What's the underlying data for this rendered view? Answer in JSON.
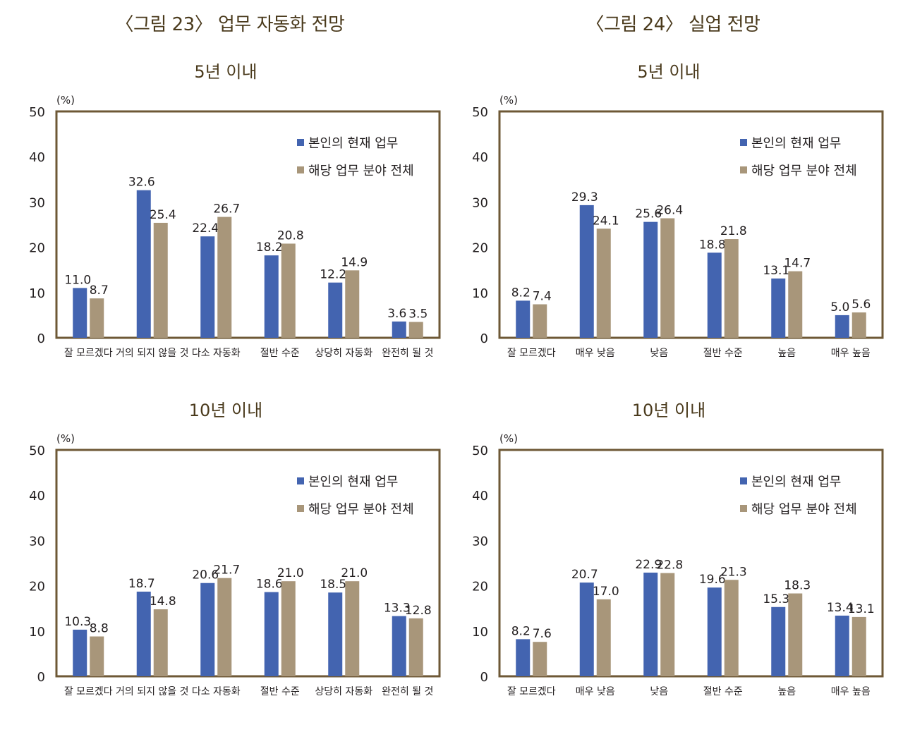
{
  "figures": [
    {
      "title": "〈그림 23〉 업무 자동화 전망"
    },
    {
      "title": "〈그림 24〉 실업 전망"
    }
  ],
  "colors": {
    "series1": "#4364b0",
    "series2": "#a8967a",
    "frame": "#6e5836",
    "title": "#4a3a1c"
  },
  "chart_data": [
    {
      "type": "bar",
      "title": "5년 이내",
      "ylabel": "(%)",
      "ylim": [
        0,
        50
      ],
      "yticks": [
        0,
        10,
        20,
        30,
        40,
        50
      ],
      "legend": "top-right",
      "categories": [
        "잘 모르겠다",
        "거의 되지 않을 것",
        "다소 자동화",
        "절반 수준",
        "상당히 자동화",
        "완전히 될 것"
      ],
      "series": [
        {
          "name": "본인의 현재 업무",
          "values": [
            11.0,
            32.6,
            22.4,
            18.2,
            12.2,
            3.6
          ],
          "labels": [
            "11.0",
            "32.6",
            "22.4",
            "18.2",
            "12.2",
            "3.6"
          ]
        },
        {
          "name": "해당 업무 분야 전체",
          "values": [
            8.7,
            25.4,
            26.7,
            20.8,
            14.9,
            3.5
          ],
          "labels": [
            "8.7",
            "25.4",
            "26.7",
            "20.8",
            "14.9",
            "3.5"
          ]
        }
      ]
    },
    {
      "type": "bar",
      "title": "5년 이내",
      "ylabel": "(%)",
      "ylim": [
        0,
        50
      ],
      "yticks": [
        0,
        10,
        20,
        30,
        40,
        50
      ],
      "legend": "top-right",
      "categories": [
        "잘 모르겠다",
        "매우 낮음",
        "낮음",
        "절반 수준",
        "높음",
        "매우 높음"
      ],
      "series": [
        {
          "name": "본인의 현재 업무",
          "values": [
            8.2,
            29.3,
            25.6,
            18.8,
            13.1,
            5.0
          ],
          "labels": [
            "8.2",
            "29.3",
            "25.6",
            "18.8",
            "13.1",
            "5.0"
          ]
        },
        {
          "name": "해당 업무 분야 전체",
          "values": [
            7.4,
            24.1,
            26.4,
            21.8,
            14.7,
            5.6
          ],
          "labels": [
            "7.4",
            "24.1",
            "26.4",
            "21.8",
            "14.7",
            "5.6"
          ]
        }
      ]
    },
    {
      "type": "bar",
      "title": "10년 이내",
      "ylabel": "(%)",
      "ylim": [
        0,
        50
      ],
      "yticks": [
        0,
        10,
        20,
        30,
        40,
        50
      ],
      "legend": "top-right",
      "categories": [
        "잘 모르겠다",
        "거의 되지 않을 것",
        "다소 자동화",
        "절반 수준",
        "상당히 자동화",
        "완전히 될 것"
      ],
      "series": [
        {
          "name": "본인의 현재 업무",
          "values": [
            10.3,
            18.7,
            20.6,
            18.6,
            18.5,
            13.3
          ],
          "labels": [
            "10.3",
            "18.7",
            "20.6",
            "18.6",
            "18.5",
            "13.3"
          ]
        },
        {
          "name": "해당 업무 분야 전체",
          "values": [
            8.8,
            14.8,
            21.7,
            21.0,
            21.0,
            12.8
          ],
          "labels": [
            "8.8",
            "14.8",
            "21.7",
            "21.0",
            "21.0",
            "12.8"
          ]
        }
      ]
    },
    {
      "type": "bar",
      "title": "10년 이내",
      "ylabel": "(%)",
      "ylim": [
        0,
        50
      ],
      "yticks": [
        0,
        10,
        20,
        30,
        40,
        50
      ],
      "legend": "top-right",
      "categories": [
        "잘 모르겠다",
        "매우 낮음",
        "낮음",
        "절반 수준",
        "높음",
        "매우 높음"
      ],
      "series": [
        {
          "name": "본인의 현재 업무",
          "values": [
            8.2,
            20.7,
            22.9,
            19.6,
            15.3,
            13.4
          ],
          "labels": [
            "8.2",
            "20.7",
            "22.9",
            "19.6",
            "15.3",
            "13.4"
          ]
        },
        {
          "name": "해당 업무 분야 전체",
          "values": [
            7.6,
            17.0,
            22.8,
            21.3,
            18.3,
            13.1
          ],
          "labels": [
            "7.6",
            "17.0",
            "22.8",
            "21.3",
            "18.3",
            "13.1"
          ]
        }
      ]
    }
  ]
}
